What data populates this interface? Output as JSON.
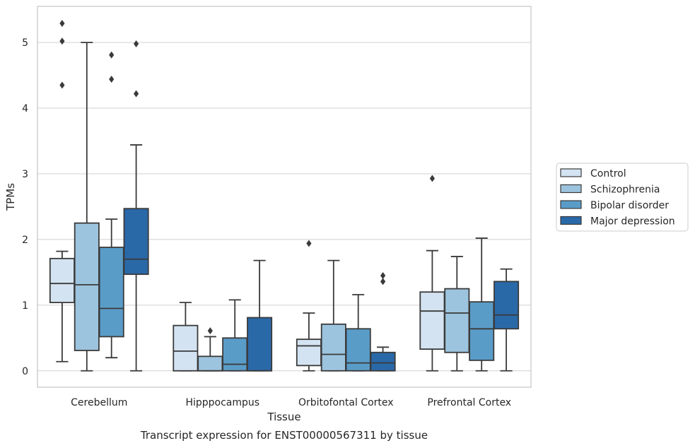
{
  "chart_data": {
    "type": "box",
    "xlabel": "Tissue",
    "ylabel": "TPMs",
    "caption": "Transcript expression for ENST00000567311 by tissue",
    "ylim": [
      -0.25,
      5.55
    ],
    "yticks": [
      "0",
      "1",
      "2",
      "3",
      "4",
      "5"
    ],
    "grid": "horizontal",
    "legend_placement": "right",
    "colors": {
      "Control": "#d4e3f2",
      "Schizophrenia": "#9dc4de",
      "Bipolar disorder": "#5a9cc8",
      "Major depression": "#2a69a8",
      "box_edge": "#3a3a3a",
      "grid": "#d0d0d0",
      "frame": "#c8c8c8"
    },
    "categories": [
      "Cerebellum",
      "Hipppocampus",
      "Orbitofontal Cortex",
      "Prefrontal Cortex"
    ],
    "series": [
      {
        "name": "Control",
        "boxes": [
          {
            "whislo": 0.14,
            "q1": 1.04,
            "med": 1.33,
            "q3": 1.71,
            "whishi": 1.82,
            "fliers": [
              4.35,
              5.02,
              5.29
            ]
          },
          {
            "whislo": 0.0,
            "q1": 0.0,
            "med": 0.3,
            "q3": 0.69,
            "whishi": 1.04,
            "fliers": []
          },
          {
            "whislo": 0.0,
            "q1": 0.08,
            "med": 0.38,
            "q3": 0.48,
            "whishi": 0.88,
            "fliers": [
              1.94
            ]
          },
          {
            "whislo": 0.0,
            "q1": 0.33,
            "med": 0.91,
            "q3": 1.2,
            "whishi": 1.83,
            "fliers": [
              2.93
            ]
          }
        ]
      },
      {
        "name": "Schizophrenia",
        "boxes": [
          {
            "whislo": 0.0,
            "q1": 0.31,
            "med": 1.31,
            "q3": 2.25,
            "whishi": 5.0,
            "fliers": []
          },
          {
            "whislo": 0.0,
            "q1": 0.0,
            "med": 0.0,
            "q3": 0.22,
            "whishi": 0.52,
            "fliers": [
              0.61
            ]
          },
          {
            "whislo": 0.0,
            "q1": 0.0,
            "med": 0.25,
            "q3": 0.71,
            "whishi": 1.68,
            "fliers": []
          },
          {
            "whislo": 0.0,
            "q1": 0.28,
            "med": 0.88,
            "q3": 1.25,
            "whishi": 1.74,
            "fliers": []
          }
        ]
      },
      {
        "name": "Bipolar disorder",
        "boxes": [
          {
            "whislo": 0.2,
            "q1": 0.52,
            "med": 0.95,
            "q3": 1.88,
            "whishi": 2.31,
            "fliers": [
              4.44,
              4.81
            ]
          },
          {
            "whislo": 0.0,
            "q1": 0.0,
            "med": 0.1,
            "q3": 0.5,
            "whishi": 1.08,
            "fliers": []
          },
          {
            "whislo": 0.0,
            "q1": 0.0,
            "med": 0.12,
            "q3": 0.64,
            "whishi": 1.16,
            "fliers": []
          },
          {
            "whislo": 0.0,
            "q1": 0.16,
            "med": 0.64,
            "q3": 1.05,
            "whishi": 2.02,
            "fliers": []
          }
        ]
      },
      {
        "name": "Major depression",
        "boxes": [
          {
            "whislo": 0.0,
            "q1": 1.47,
            "med": 1.7,
            "q3": 2.47,
            "whishi": 3.44,
            "fliers": [
              4.22,
              4.98
            ]
          },
          {
            "whislo": 0.0,
            "q1": 0.0,
            "med": 0.0,
            "q3": 0.81,
            "whishi": 1.68,
            "fliers": []
          },
          {
            "whislo": 0.0,
            "q1": 0.0,
            "med": 0.12,
            "q3": 0.28,
            "whishi": 0.36,
            "fliers": [
              1.36,
              1.45
            ]
          },
          {
            "whislo": 0.0,
            "q1": 0.64,
            "med": 0.85,
            "q3": 1.36,
            "whishi": 1.55,
            "fliers": []
          }
        ]
      }
    ]
  }
}
